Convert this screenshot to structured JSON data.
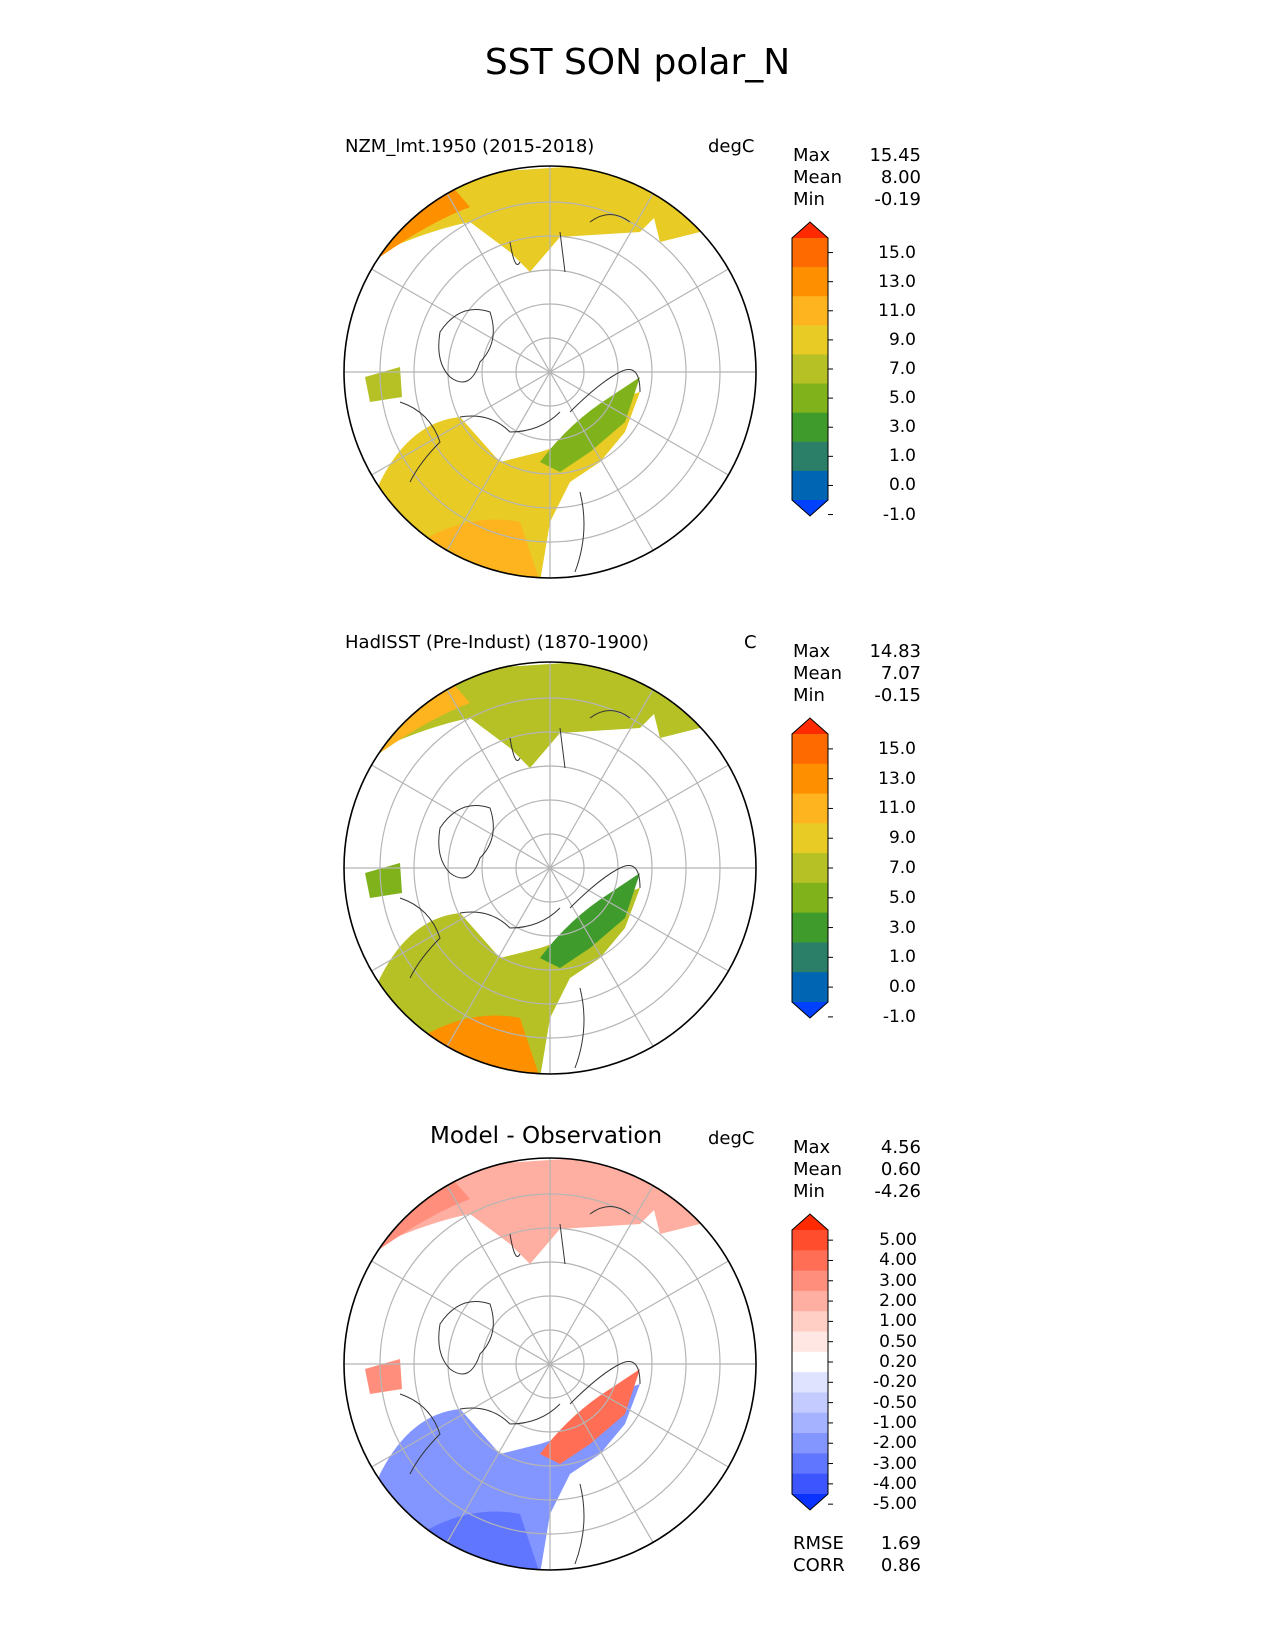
{
  "figure": {
    "title": "SST SON polar_N"
  },
  "panels": [
    {
      "left_title": "NZM_lmt.1950 (2015-2018)",
      "units": "degC",
      "stats": [
        {
          "label": "Max",
          "value": "15.45"
        },
        {
          "label": "Mean",
          "value": "8.00"
        },
        {
          "label": "Min",
          "value": "-0.19"
        }
      ],
      "colorbar_ticks": [
        "15.0",
        "13.0",
        "11.0",
        "9.0",
        "7.0",
        "5.0",
        "3.0",
        "1.0",
        "0.0",
        "-1.0"
      ],
      "colorbar_colors": [
        "#ff2a00",
        "#fe6a00",
        "#fe9000",
        "#fdb41e",
        "#e8cb24",
        "#b5c124",
        "#7fb21b",
        "#3f9c2c",
        "#2b7f68",
        "#0066b4",
        "#0041fe"
      ],
      "ocean_colors": {
        "north": "#e8cb24",
        "northwest": "#fe9000",
        "south": "#e8cb24",
        "southfar": "#fdb41e",
        "west": "#b5c124",
        "east": "#7fb21b"
      }
    },
    {
      "left_title": "HadISST (Pre-Indust) (1870-1900)",
      "units": "C",
      "stats": [
        {
          "label": "Max",
          "value": "14.83"
        },
        {
          "label": "Mean",
          "value": "7.07"
        },
        {
          "label": "Min",
          "value": "-0.15"
        }
      ],
      "colorbar_ticks": [
        "15.0",
        "13.0",
        "11.0",
        "9.0",
        "7.0",
        "5.0",
        "3.0",
        "1.0",
        "0.0",
        "-1.0"
      ],
      "colorbar_colors": [
        "#ff2a00",
        "#fe6a00",
        "#fe9000",
        "#fdb41e",
        "#e8cb24",
        "#b5c124",
        "#7fb21b",
        "#3f9c2c",
        "#2b7f68",
        "#0066b4",
        "#0041fe"
      ],
      "ocean_colors": {
        "north": "#b5c124",
        "northwest": "#fdb41e",
        "south": "#b5c124",
        "southfar": "#fe9000",
        "west": "#7fb21b",
        "east": "#3f9c2c"
      }
    },
    {
      "center_title": "Model - Observation",
      "units": "degC",
      "stats": [
        {
          "label": "Max",
          "value": "4.56"
        },
        {
          "label": "Mean",
          "value": "0.60"
        },
        {
          "label": "Min",
          "value": "-4.26"
        }
      ],
      "colorbar_ticks": [
        "5.00",
        "4.00",
        "3.00",
        "2.00",
        "1.00",
        "0.50",
        "0.20",
        "-0.20",
        "-0.50",
        "-1.00",
        "-2.00",
        "-3.00",
        "-4.00",
        "-5.00"
      ],
      "colorbar_colors": [
        "#ff2a00",
        "#ff4d2e",
        "#ff6e55",
        "#ff8f7c",
        "#ffafa1",
        "#ffcfc6",
        "#ffe8e3",
        "#ffffff",
        "#dfe3ff",
        "#c3cbff",
        "#a5b2ff",
        "#8395ff",
        "#6176ff",
        "#3d55ff",
        "#0a33ff"
      ],
      "extra_stats": [
        {
          "label": "RMSE",
          "value": "1.69"
        },
        {
          "label": "CORR",
          "value": "0.86"
        }
      ],
      "ocean_colors": {
        "north": "#ffafa1",
        "northwest": "#ff8f7c",
        "south": "#8395ff",
        "southfar": "#6176ff",
        "west": "#ff8f7c",
        "east": "#ff6e55"
      }
    }
  ]
}
